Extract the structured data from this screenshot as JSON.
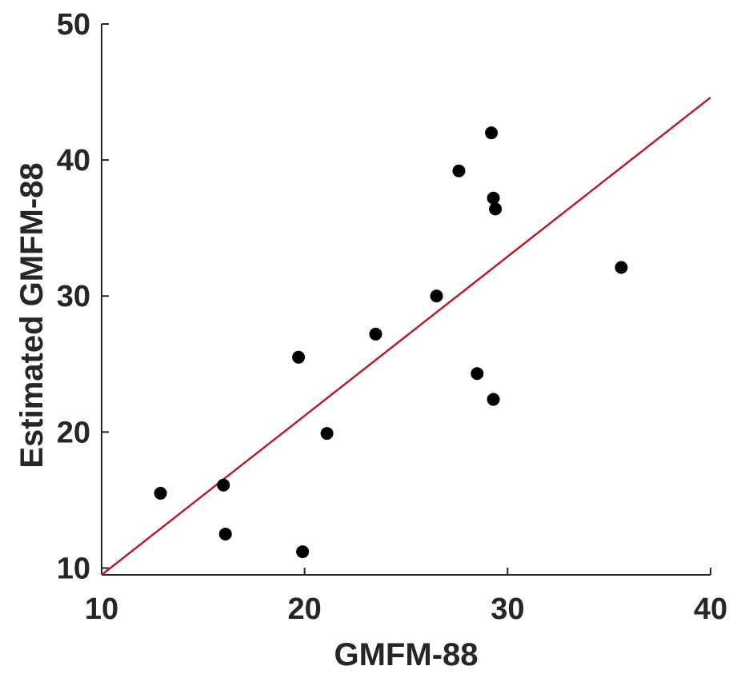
{
  "chart_data": {
    "type": "scatter",
    "title": "",
    "xlabel": "GMFM-88",
    "ylabel": "Estimated GMFM-88",
    "xlim": [
      10,
      40
    ],
    "ylim": [
      9.5,
      50
    ],
    "x_ticks": [
      10,
      20,
      30,
      40
    ],
    "y_ticks": [
      10,
      20,
      30,
      40,
      50
    ],
    "grid": false,
    "legend": "none",
    "series": [
      {
        "color": "#000000",
        "points": [
          {
            "x": 12.9,
            "y": 15.5
          },
          {
            "x": 16.0,
            "y": 16.1
          },
          {
            "x": 16.1,
            "y": 12.5
          },
          {
            "x": 19.7,
            "y": 25.5
          },
          {
            "x": 19.9,
            "y": 11.2
          },
          {
            "x": 21.1,
            "y": 19.9
          },
          {
            "x": 23.5,
            "y": 27.2
          },
          {
            "x": 26.5,
            "y": 30.0
          },
          {
            "x": 27.6,
            "y": 39.2
          },
          {
            "x": 28.5,
            "y": 24.3
          },
          {
            "x": 29.2,
            "y": 42.0
          },
          {
            "x": 29.3,
            "y": 22.4
          },
          {
            "x": 29.3,
            "y": 37.2
          },
          {
            "x": 29.4,
            "y": 36.4
          },
          {
            "x": 35.6,
            "y": 32.1
          }
        ]
      }
    ],
    "fit_line": {
      "color": "#b22030",
      "from": {
        "x": 10,
        "y": 9.5
      },
      "to": {
        "x": 40,
        "y": 44.6
      }
    }
  }
}
